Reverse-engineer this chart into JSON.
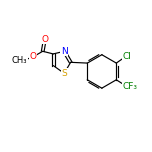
{
  "bg_color": "#ffffff",
  "bond_color": "#000000",
  "atom_colors": {
    "O": "#ff0000",
    "N": "#0000ff",
    "S": "#d4a000",
    "F": "#008000",
    "Cl": "#008000",
    "C": "#000000"
  },
  "font_size": 6.5,
  "figsize": [
    1.52,
    1.52
  ],
  "dpi": 100,
  "lw": 0.85
}
